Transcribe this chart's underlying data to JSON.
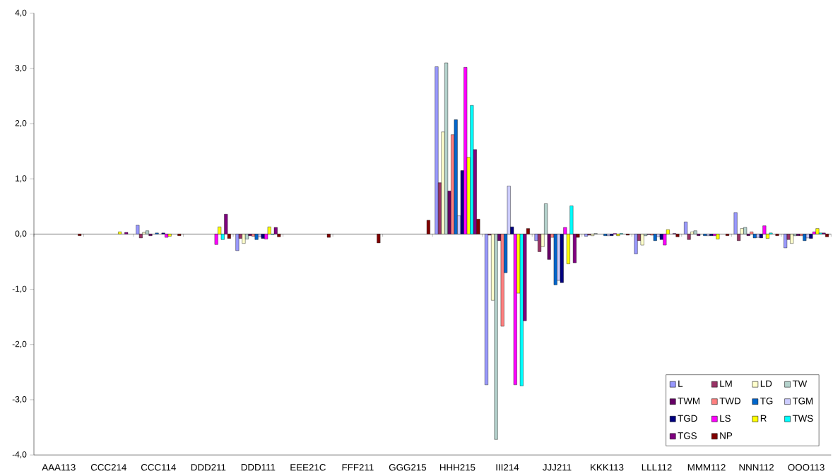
{
  "chart_data": {
    "type": "bar",
    "categories": [
      "AAA113",
      "CCC214",
      "CCC114",
      "DDD211",
      "DDD111",
      "EEE21C",
      "FFF211",
      "GGG215",
      "HHH215",
      "III214",
      "JJJ211",
      "KKK113",
      "LLL112",
      "MMM112",
      "NNN112",
      "OOO113"
    ],
    "series": [
      {
        "name": "L",
        "color": "#9999ff",
        "values": [
          null,
          null,
          0.16,
          null,
          -0.3,
          null,
          null,
          null,
          3.03,
          -2.73,
          -0.12,
          -0.04,
          -0.36,
          0.22,
          0.39,
          -0.25
        ]
      },
      {
        "name": "LM",
        "color": "#993366",
        "values": [
          null,
          null,
          -0.07,
          null,
          -0.08,
          null,
          null,
          null,
          0.93,
          -0.02,
          -0.32,
          -0.02,
          -0.12,
          -0.1,
          -0.12,
          -0.1
        ]
      },
      {
        "name": "LD",
        "color": "#ffffcc",
        "values": [
          null,
          null,
          0.03,
          null,
          -0.17,
          null,
          null,
          null,
          1.85,
          -1.2,
          -0.23,
          -0.03,
          -0.2,
          0.04,
          0.1,
          -0.17
        ]
      },
      {
        "name": "TW",
        "color": "#b4d2cc",
        "values": [
          null,
          null,
          0.06,
          null,
          -0.09,
          null,
          null,
          null,
          3.1,
          -3.72,
          0.55,
          0.01,
          -0.03,
          0.06,
          0.12,
          -0.03
        ]
      },
      {
        "name": "TWM",
        "color": "#660066",
        "values": [
          null,
          null,
          -0.03,
          null,
          -0.03,
          null,
          null,
          null,
          0.78,
          -0.12,
          -0.46,
          null,
          -0.01,
          -0.03,
          -0.03,
          -0.03
        ]
      },
      {
        "name": "TWD",
        "color": "#ff8080",
        "values": [
          null,
          null,
          null,
          null,
          -0.04,
          null,
          null,
          null,
          1.8,
          -1.67,
          -0.06,
          null,
          -0.02,
          null,
          0.04,
          -0.03
        ]
      },
      {
        "name": "TG",
        "color": "#0066cc",
        "values": [
          null,
          null,
          0.02,
          null,
          -0.1,
          null,
          null,
          null,
          2.07,
          -0.7,
          -0.92,
          -0.03,
          -0.12,
          -0.03,
          -0.07,
          -0.12
        ]
      },
      {
        "name": "TGM",
        "color": "#ccccff",
        "values": [
          null,
          null,
          null,
          null,
          -0.05,
          null,
          null,
          null,
          0.33,
          0.87,
          -0.84,
          -0.03,
          -0.05,
          -0.03,
          -0.06,
          -0.07
        ]
      },
      {
        "name": "TGD",
        "color": "#000080",
        "values": [
          null,
          null,
          0.02,
          null,
          -0.08,
          null,
          null,
          null,
          1.15,
          0.13,
          -0.88,
          -0.03,
          -0.1,
          -0.03,
          -0.07,
          -0.08
        ]
      },
      {
        "name": "LS",
        "color": "#ff00ff",
        "values": [
          null,
          null,
          -0.06,
          -0.19,
          -0.09,
          null,
          null,
          null,
          3.02,
          -2.73,
          0.12,
          0.01,
          -0.2,
          -0.03,
          0.15,
          0.04
        ]
      },
      {
        "name": "R",
        "color": "#ffff00",
        "values": [
          null,
          0.04,
          -0.04,
          0.13,
          0.13,
          null,
          null,
          null,
          1.39,
          -1.07,
          -0.54,
          -0.03,
          0.08,
          -0.09,
          -0.08,
          0.1
        ]
      },
      {
        "name": "TWS",
        "color": "#00ffff",
        "values": [
          null,
          null,
          null,
          -0.1,
          -0.01,
          null,
          null,
          null,
          2.33,
          -2.75,
          0.51,
          0.01,
          null,
          null,
          0.02,
          0.02
        ]
      },
      {
        "name": "TGS",
        "color": "#800080",
        "values": [
          null,
          0.03,
          null,
          0.36,
          0.12,
          null,
          null,
          null,
          1.53,
          -1.57,
          -0.52,
          null,
          0.01,
          null,
          null,
          0.02
        ]
      },
      {
        "name": "NP",
        "color": "#800000",
        "values": [
          -0.03,
          null,
          -0.03,
          -0.08,
          -0.05,
          -0.06,
          -0.16,
          0.25,
          0.27,
          0.1,
          -0.06,
          -0.02,
          -0.05,
          -0.03,
          -0.03,
          -0.05
        ]
      }
    ],
    "ylim": [
      -4,
      4
    ],
    "yticks": [
      {
        "value": -4,
        "label": "-4,0"
      },
      {
        "value": -3,
        "label": "-3,0"
      },
      {
        "value": -2,
        "label": "-2,0"
      },
      {
        "value": -1,
        "label": "-1,0"
      },
      {
        "value": 0,
        "label": "0,0"
      },
      {
        "value": 1,
        "label": "1,0"
      },
      {
        "value": 2,
        "label": "2,0"
      },
      {
        "value": 3,
        "label": "3,0"
      },
      {
        "value": 4,
        "label": "4,0"
      }
    ],
    "legend": "bottom right"
  }
}
